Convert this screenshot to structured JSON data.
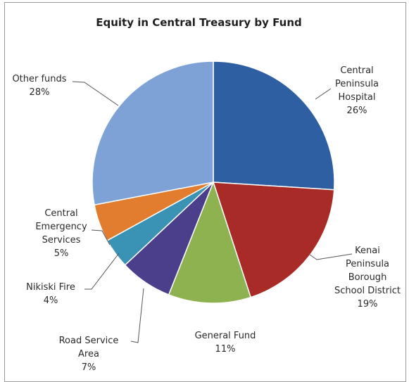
{
  "chart_data": {
    "type": "pie",
    "title": "Equity in Central Treasury by Fund",
    "slices": [
      {
        "label_lines": [
          "Central",
          "Peninsula",
          "Hospital"
        ],
        "value_text": "26%",
        "value": 26,
        "color": "#2e5fa3"
      },
      {
        "label_lines": [
          "Kenai",
          "Peninsula",
          "Borough",
          "School District"
        ],
        "value_text": "19%",
        "value": 19,
        "color": "#a82b27"
      },
      {
        "label_lines": [
          "General Fund"
        ],
        "value_text": "11%",
        "value": 11,
        "color": "#8db24f"
      },
      {
        "label_lines": [
          "Road Service",
          "Area"
        ],
        "value_text": "7%",
        "value": 7,
        "color": "#4b3f8c"
      },
      {
        "label_lines": [
          "Nikiski Fire"
        ],
        "value_text": "4%",
        "value": 4,
        "color": "#3a92b4"
      },
      {
        "label_lines": [
          "Central",
          "Emergency",
          "Services"
        ],
        "value_text": "5%",
        "value": 5,
        "color": "#e27d2f"
      },
      {
        "label_lines": [
          "Other funds"
        ],
        "value_text": "28%",
        "value": 28,
        "color": "#7fa2d6"
      }
    ],
    "legend": "none"
  }
}
